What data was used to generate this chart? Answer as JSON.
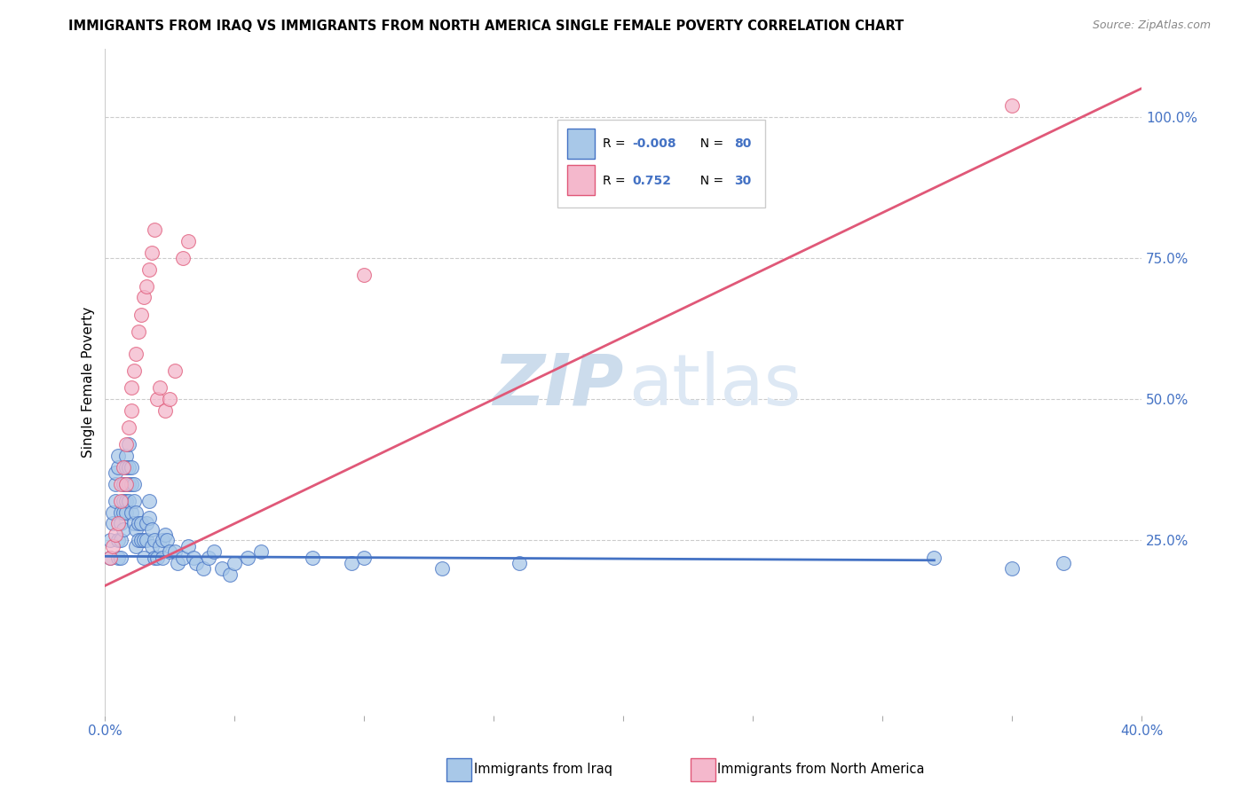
{
  "title": "IMMIGRANTS FROM IRAQ VS IMMIGRANTS FROM NORTH AMERICA SINGLE FEMALE POVERTY CORRELATION CHART",
  "source": "Source: ZipAtlas.com",
  "ylabel": "Single Female Poverty",
  "x_min": 0.0,
  "x_max": 0.4,
  "y_min": -0.06,
  "y_max": 1.12,
  "x_ticks": [
    0.0,
    0.05,
    0.1,
    0.15,
    0.2,
    0.25,
    0.3,
    0.35,
    0.4
  ],
  "x_tick_labels": [
    "0.0%",
    "",
    "",
    "",
    "",
    "",
    "",
    "",
    "40.0%"
  ],
  "y_ticks": [
    0.25,
    0.5,
    0.75,
    1.0
  ],
  "y_tick_labels": [
    "25.0%",
    "50.0%",
    "75.0%",
    "100.0%"
  ],
  "color_iraq": "#a8c8e8",
  "color_iraq_line": "#4472c4",
  "color_na": "#f4b8cc",
  "color_na_line": "#e05878",
  "color_blue": "#4472c4",
  "watermark_zip": "ZIP",
  "watermark_atlas": "atlas",
  "iraq_scatter_x": [
    0.002,
    0.002,
    0.003,
    0.003,
    0.004,
    0.004,
    0.004,
    0.005,
    0.005,
    0.005,
    0.005,
    0.006,
    0.006,
    0.006,
    0.006,
    0.007,
    0.007,
    0.007,
    0.007,
    0.008,
    0.008,
    0.008,
    0.008,
    0.008,
    0.009,
    0.009,
    0.009,
    0.009,
    0.01,
    0.01,
    0.01,
    0.011,
    0.011,
    0.011,
    0.012,
    0.012,
    0.012,
    0.013,
    0.013,
    0.014,
    0.014,
    0.015,
    0.015,
    0.016,
    0.016,
    0.017,
    0.017,
    0.018,
    0.018,
    0.019,
    0.019,
    0.02,
    0.021,
    0.022,
    0.022,
    0.023,
    0.024,
    0.025,
    0.027,
    0.028,
    0.03,
    0.032,
    0.034,
    0.035,
    0.038,
    0.04,
    0.042,
    0.045,
    0.048,
    0.05,
    0.055,
    0.06,
    0.08,
    0.095,
    0.1,
    0.13,
    0.16,
    0.32,
    0.35,
    0.37
  ],
  "iraq_scatter_y": [
    0.22,
    0.25,
    0.28,
    0.3,
    0.32,
    0.35,
    0.37,
    0.38,
    0.4,
    0.25,
    0.22,
    0.3,
    0.28,
    0.25,
    0.22,
    0.35,
    0.32,
    0.3,
    0.27,
    0.4,
    0.38,
    0.35,
    0.32,
    0.3,
    0.42,
    0.38,
    0.35,
    0.32,
    0.38,
    0.35,
    0.3,
    0.35,
    0.32,
    0.28,
    0.3,
    0.27,
    0.24,
    0.28,
    0.25,
    0.28,
    0.25,
    0.25,
    0.22,
    0.28,
    0.25,
    0.32,
    0.29,
    0.27,
    0.24,
    0.25,
    0.22,
    0.22,
    0.24,
    0.25,
    0.22,
    0.26,
    0.25,
    0.23,
    0.23,
    0.21,
    0.22,
    0.24,
    0.22,
    0.21,
    0.2,
    0.22,
    0.23,
    0.2,
    0.19,
    0.21,
    0.22,
    0.23,
    0.22,
    0.21,
    0.22,
    0.2,
    0.21,
    0.22,
    0.2,
    0.21
  ],
  "na_scatter_x": [
    0.002,
    0.003,
    0.004,
    0.005,
    0.006,
    0.006,
    0.007,
    0.008,
    0.008,
    0.009,
    0.01,
    0.01,
    0.011,
    0.012,
    0.013,
    0.014,
    0.015,
    0.016,
    0.017,
    0.018,
    0.019,
    0.02,
    0.021,
    0.023,
    0.025,
    0.027,
    0.03,
    0.032,
    0.1,
    0.35
  ],
  "na_scatter_y": [
    0.22,
    0.24,
    0.26,
    0.28,
    0.32,
    0.35,
    0.38,
    0.35,
    0.42,
    0.45,
    0.48,
    0.52,
    0.55,
    0.58,
    0.62,
    0.65,
    0.68,
    0.7,
    0.73,
    0.76,
    0.8,
    0.5,
    0.52,
    0.48,
    0.5,
    0.55,
    0.75,
    0.78,
    0.72,
    1.02
  ],
  "iraq_line_x": [
    0.0,
    0.32
  ],
  "iraq_line_y": [
    0.222,
    0.215
  ],
  "na_line_x": [
    0.0,
    0.4
  ],
  "na_line_y": [
    0.17,
    1.05
  ]
}
